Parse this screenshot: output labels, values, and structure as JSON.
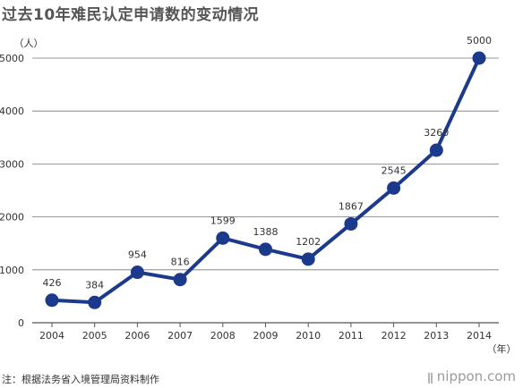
{
  "title": "过去10年难民认定申请数的变动情况",
  "footnote": "注：根据法务省入境管理局资料制作",
  "brand": "nippon.com",
  "chart_data": {
    "type": "line",
    "title": "过去10年难民认定申请数的变动情况",
    "xlabel": "（年）",
    "ylabel": "（人）",
    "categories": [
      "2004",
      "2005",
      "2006",
      "2007",
      "2008",
      "2009",
      "2010",
      "2011",
      "2012",
      "2013",
      "2014"
    ],
    "series": [
      {
        "values": [
          426,
          384,
          954,
          816,
          1599,
          1388,
          1202,
          1867,
          2545,
          3260,
          5000
        ]
      }
    ],
    "data_labels": [
      "426",
      "384",
      "954",
      "816",
      "1599",
      "1388",
      "1202",
      "1867",
      "2545",
      "3260",
      "5000"
    ],
    "yticks": [
      0,
      1000,
      2000,
      3000,
      4000,
      5000
    ],
    "ylim": [
      0,
      5000
    ],
    "grid": true,
    "line_color": "#1b3a8c"
  }
}
